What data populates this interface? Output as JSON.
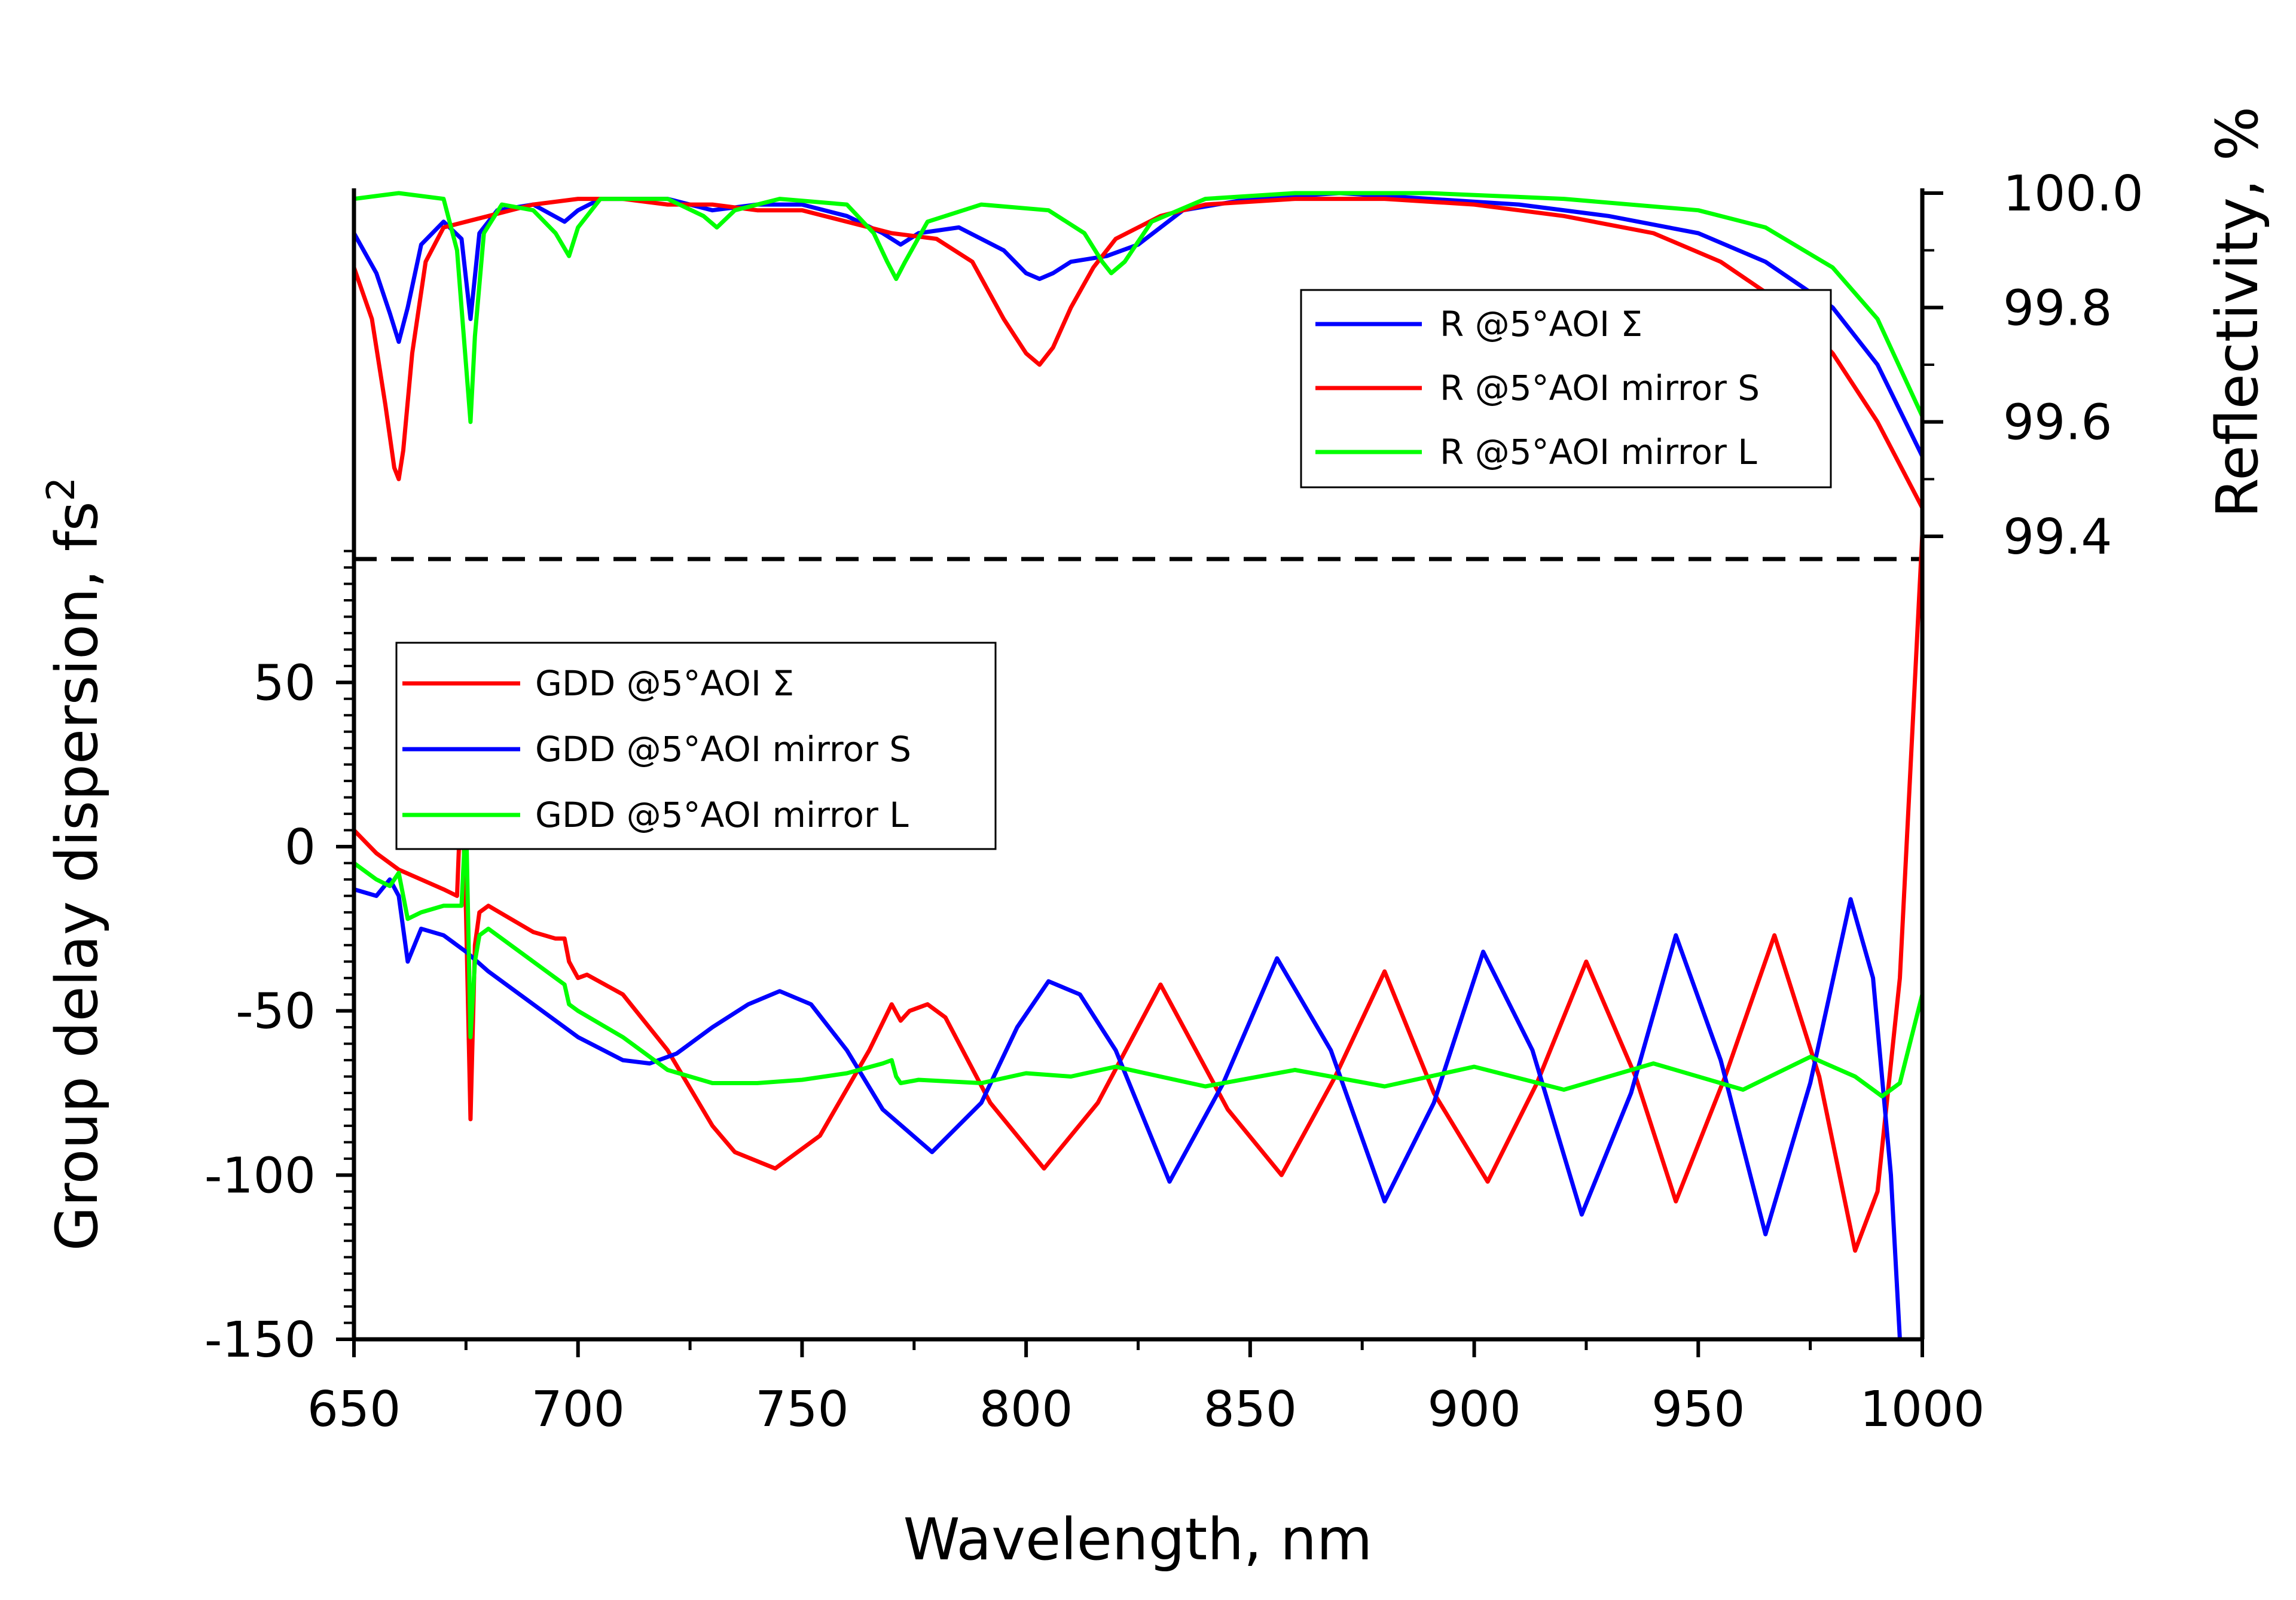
{
  "chart_data": {
    "type": "line",
    "xlabel": "Wavelength, nm",
    "xlim": [
      650,
      1000
    ],
    "x_ticks": [
      "650",
      "700",
      "750",
      "800",
      "850",
      "900",
      "950",
      "1000"
    ],
    "top_panel": {
      "ylabel": "Reflectivity, %",
      "ylim": [
        99.35,
        100.0
      ],
      "y_ticks": [
        "99.4",
        "99.6",
        "99.8",
        "100.0"
      ],
      "axis_side": "right",
      "legend_placement": "right",
      "threshold_line": {
        "value": 99.35,
        "style": "dashed"
      },
      "series": [
        {
          "name": "R @5°AOI Σ",
          "color": "#0000ff",
          "x": [
            650,
            655,
            658,
            660,
            662,
            665,
            670,
            674,
            676,
            678,
            682,
            690,
            697,
            700,
            705,
            710,
            720,
            730,
            740,
            750,
            760,
            768,
            772,
            776,
            785,
            795,
            800,
            803,
            806,
            810,
            818,
            825,
            835,
            850,
            870,
            890,
            910,
            930,
            950,
            965,
            980,
            990,
            1000
          ],
          "values": [
            99.93,
            99.86,
            99.79,
            99.74,
            99.8,
            99.91,
            99.95,
            99.92,
            99.78,
            99.93,
            99.97,
            99.98,
            99.95,
            99.97,
            99.99,
            99.99,
            99.99,
            99.97,
            99.98,
            99.98,
            99.96,
            99.93,
            99.91,
            99.93,
            99.94,
            99.9,
            99.86,
            99.85,
            99.86,
            99.88,
            99.89,
            99.91,
            99.97,
            99.99,
            100.0,
            99.99,
            99.98,
            99.96,
            99.93,
            99.88,
            99.8,
            99.7,
            99.54
          ]
        },
        {
          "name": "R @5°AOI mirror S",
          "color": "#ff0000",
          "x": [
            650,
            654,
            657,
            659,
            660,
            661,
            663,
            666,
            670,
            675,
            680,
            690,
            700,
            710,
            720,
            730,
            740,
            750,
            760,
            770,
            780,
            788,
            795,
            800,
            803,
            806,
            810,
            815,
            820,
            830,
            840,
            860,
            880,
            900,
            920,
            940,
            955,
            970,
            980,
            990,
            1000
          ],
          "values": [
            99.87,
            99.78,
            99.63,
            99.52,
            99.5,
            99.55,
            99.72,
            99.88,
            99.94,
            99.95,
            99.96,
            99.98,
            99.99,
            99.99,
            99.98,
            99.98,
            99.97,
            99.97,
            99.95,
            99.93,
            99.92,
            99.88,
            99.78,
            99.72,
            99.7,
            99.73,
            99.8,
            99.87,
            99.92,
            99.96,
            99.98,
            99.99,
            99.99,
            99.98,
            99.96,
            99.93,
            99.88,
            99.8,
            99.72,
            99.6,
            99.45
          ]
        },
        {
          "name": "R @5°AOI mirror L",
          "color": "#00ff00",
          "x": [
            650,
            660,
            670,
            673,
            675,
            676,
            677,
            679,
            683,
            690,
            695,
            698,
            700,
            705,
            720,
            728,
            731,
            735,
            745,
            760,
            766,
            769,
            771,
            773,
            778,
            790,
            805,
            813,
            817,
            819,
            822,
            828,
            840,
            860,
            890,
            920,
            950,
            965,
            980,
            990,
            1000
          ],
          "values": [
            99.99,
            100.0,
            99.99,
            99.9,
            99.7,
            99.6,
            99.75,
            99.93,
            99.98,
            99.97,
            99.93,
            99.89,
            99.94,
            99.99,
            99.99,
            99.96,
            99.94,
            99.97,
            99.99,
            99.98,
            99.93,
            99.88,
            99.85,
            99.88,
            99.95,
            99.98,
            99.97,
            99.93,
            99.88,
            99.86,
            99.88,
            99.95,
            99.99,
            100.0,
            100.0,
            99.99,
            99.97,
            99.94,
            99.87,
            99.78,
            99.61
          ]
        }
      ]
    },
    "bottom_panel": {
      "ylabel": "Group delay dispersion, fs",
      "ylabel_superscript": "2",
      "ylim": [
        -150,
        90
      ],
      "y_ticks": [
        "50",
        "0",
        "-50",
        "-100",
        "-150"
      ],
      "axis_side": "left",
      "legend_placement": "upper-left",
      "series": [
        {
          "name": "GDD @5°AOI Σ",
          "color": "#ff0000",
          "x": [
            650,
            655,
            660,
            665,
            670,
            673,
            674,
            675,
            676,
            677,
            678,
            680,
            685,
            690,
            695,
            697,
            698,
            700,
            702,
            710,
            720,
            730,
            735,
            744,
            754,
            765,
            770,
            772,
            774,
            778,
            782,
            792,
            804,
            816,
            830,
            845,
            857,
            869,
            880,
            891,
            903,
            914,
            925,
            936,
            945,
            956,
            967,
            977,
            985,
            990,
            995,
            1000
          ],
          "values": [
            5,
            -2,
            -7,
            -10,
            -13,
            -15,
            20,
            -20,
            -83,
            -30,
            -20,
            -18,
            -22,
            -26,
            -28,
            -28,
            -35,
            -40,
            -39,
            -45,
            -62,
            -85,
            -93,
            -98,
            -88,
            -62,
            -48,
            -53,
            -50,
            -48,
            -52,
            -78,
            -98,
            -78,
            -42,
            -80,
            -100,
            -70,
            -38,
            -75,
            -102,
            -72,
            -35,
            -70,
            -108,
            -70,
            -27,
            -70,
            -123,
            -105,
            -40,
            95
          ]
        },
        {
          "name": "GDD @5°AOI mirror S",
          "color": "#0000ff",
          "x": [
            650,
            655,
            658,
            660,
            662,
            665,
            670,
            675,
            680,
            690,
            700,
            710,
            716,
            722,
            730,
            738,
            745,
            752,
            760,
            768,
            779,
            790,
            798,
            805,
            812,
            820,
            832,
            844,
            856,
            868,
            880,
            891,
            902,
            913,
            924,
            935,
            945,
            955,
            965,
            975,
            984,
            989,
            993,
            995
          ],
          "values": [
            -13,
            -15,
            -10,
            -15,
            -35,
            -25,
            -27,
            -32,
            -38,
            -48,
            -58,
            -65,
            -66,
            -63,
            -55,
            -48,
            -44,
            -48,
            -62,
            -80,
            -93,
            -78,
            -55,
            -41,
            -45,
            -62,
            -102,
            -72,
            -34,
            -62,
            -108,
            -78,
            -32,
            -62,
            -112,
            -75,
            -27,
            -65,
            -118,
            -72,
            -16,
            -40,
            -100,
            -150
          ]
        },
        {
          "name": "GDD @5°AOI mirror L",
          "color": "#00ff00",
          "x": [
            650,
            655,
            658,
            660,
            662,
            665,
            670,
            674,
            675,
            676,
            677,
            678,
            680,
            690,
            697,
            698,
            700,
            710,
            720,
            730,
            740,
            750,
            760,
            768,
            770,
            771,
            772,
            776,
            790,
            800,
            810,
            820,
            840,
            860,
            880,
            900,
            920,
            940,
            960,
            975,
            985,
            991,
            995,
            1000
          ],
          "values": [
            -5,
            -10,
            -12,
            -8,
            -22,
            -20,
            -18,
            -18,
            10,
            -58,
            -35,
            -27,
            -25,
            -35,
            -42,
            -48,
            -50,
            -58,
            -68,
            -72,
            -72,
            -71,
            -69,
            -66,
            -65,
            -70,
            -72,
            -71,
            -72,
            -69,
            -70,
            -67,
            -73,
            -68,
            -73,
            -67,
            -74,
            -66,
            -74,
            -64,
            -70,
            -76,
            -72,
            -45
          ]
        }
      ]
    }
  }
}
